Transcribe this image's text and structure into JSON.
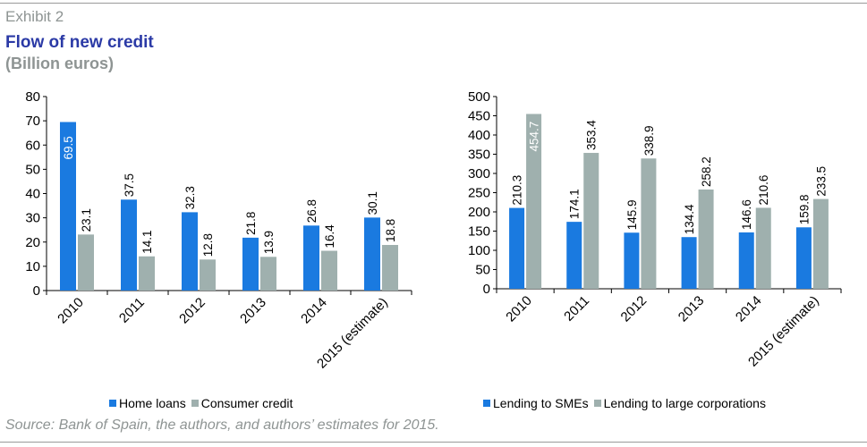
{
  "header": {
    "exhibit": "Exhibit 2",
    "title": "Flow of new credit",
    "subtitle": "(Billion euros)"
  },
  "footer": {
    "source": "Source: Bank of Spain, the authors, and authors’ estimates for 2015."
  },
  "colors": {
    "blue": "#1a7ae0",
    "gray": "#9fb0ae",
    "title": "#2b3aa6",
    "muted": "#8e9493"
  },
  "chart_data": [
    {
      "type": "bar",
      "categories": [
        "2010",
        "2011",
        "2012",
        "2013",
        "2014",
        "2015 (estimate)"
      ],
      "series": [
        {
          "name": "Home loans",
          "values": [
            69.5,
            37.5,
            32.3,
            21.8,
            26.8,
            30.1
          ],
          "color": "#1a7ae0"
        },
        {
          "name": "Consumer credit",
          "values": [
            23.1,
            14.1,
            12.8,
            13.9,
            16.4,
            18.8
          ],
          "color": "#9fb0ae"
        }
      ],
      "ylim": [
        0,
        80
      ],
      "yticks": [
        0,
        10,
        20,
        30,
        40,
        50,
        60,
        70,
        80
      ],
      "xlabel": "",
      "ylabel": "",
      "grid": false,
      "legend": "bottom"
    },
    {
      "type": "bar",
      "categories": [
        "2010",
        "2011",
        "2012",
        "2013",
        "2014",
        "2015 (estimate)"
      ],
      "series": [
        {
          "name": "Lending to SMEs",
          "values": [
            210.3,
            174.1,
            145.9,
            134.4,
            146.6,
            159.8
          ],
          "color": "#1a7ae0"
        },
        {
          "name": "Lending to large corporations",
          "values": [
            454.7,
            353.4,
            338.9,
            258.2,
            210.6,
            233.5
          ],
          "color": "#9fb0ae"
        }
      ],
      "ylim": [
        0,
        500
      ],
      "yticks": [
        0,
        50,
        100,
        150,
        200,
        250,
        300,
        350,
        400,
        450,
        500
      ],
      "xlabel": "",
      "ylabel": "",
      "grid": false,
      "legend": "bottom"
    }
  ]
}
